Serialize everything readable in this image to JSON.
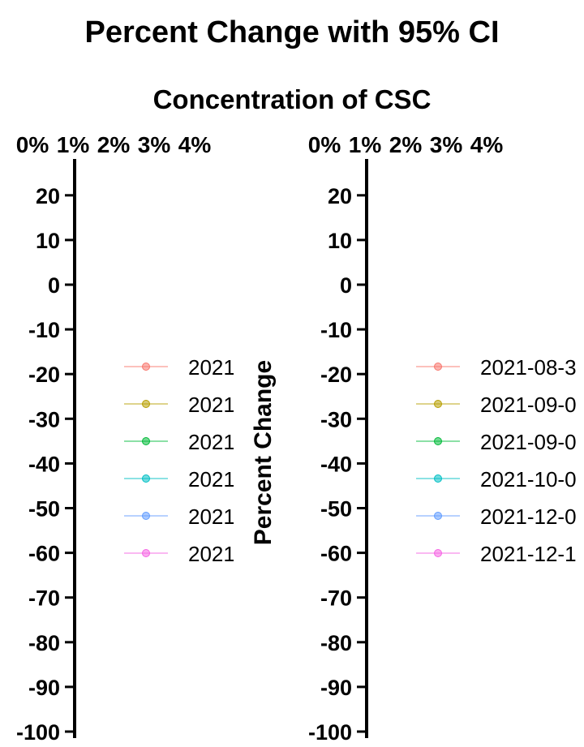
{
  "chart_data": {
    "type": "line",
    "title": "Percent Change with 95% CI",
    "subtitle": "Concentration of CSC",
    "ylabel": "Percent Change",
    "xlabel": "",
    "ylim": [
      -100,
      25
    ],
    "y_ticks": [
      20,
      10,
      0,
      -10,
      -20,
      -30,
      -40,
      -50,
      -60,
      -70,
      -80,
      -90,
      -100
    ],
    "top_labels": [
      "0%",
      "1%",
      "2%",
      "3%",
      "4%"
    ],
    "legend": {
      "placement": "right",
      "entries": [
        {
          "label": "2021-08-3",
          "color": "#F8766D"
        },
        {
          "label": "2021-09-0",
          "color": "#B79F00"
        },
        {
          "label": "2021-09-0",
          "color": "#00BA38"
        },
        {
          "label": "2021-10-0",
          "color": "#00BFC4"
        },
        {
          "label": "2021-12-0",
          "color": "#619CFF"
        },
        {
          "label": "2021-12-1",
          "color": "#F564E3"
        }
      ]
    },
    "series": [],
    "panels": 2
  }
}
